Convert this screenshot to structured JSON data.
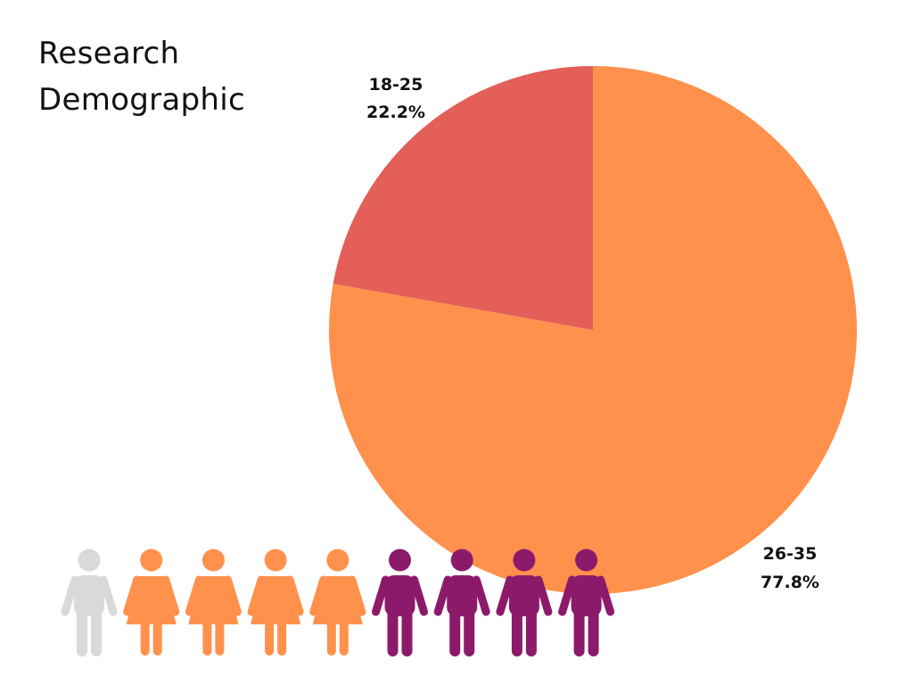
{
  "title": {
    "line1": "Research",
    "line2": "Demographic"
  },
  "chart_data": {
    "type": "pie",
    "title": "Research Demographic",
    "start_direction": "12 o'clock, counterclockwise",
    "slices": [
      {
        "label": "18-25",
        "value": 22.2,
        "value_label": "22.2%",
        "color": "#E35F58"
      },
      {
        "label": "26-35",
        "value": 77.8,
        "value_label": "77.8%",
        "color": "#FF914D"
      }
    ]
  },
  "people_icons": [
    {
      "kind": "male",
      "color": "#D9D9D9"
    },
    {
      "kind": "female",
      "color": "#FF914D"
    },
    {
      "kind": "female",
      "color": "#FF914D"
    },
    {
      "kind": "female",
      "color": "#FF914D"
    },
    {
      "kind": "female",
      "color": "#FF914D"
    },
    {
      "kind": "male",
      "color": "#8C1A6A"
    },
    {
      "kind": "male",
      "color": "#8C1A6A"
    },
    {
      "kind": "male",
      "color": "#8C1A6A"
    },
    {
      "kind": "male",
      "color": "#8C1A6A"
    }
  ]
}
